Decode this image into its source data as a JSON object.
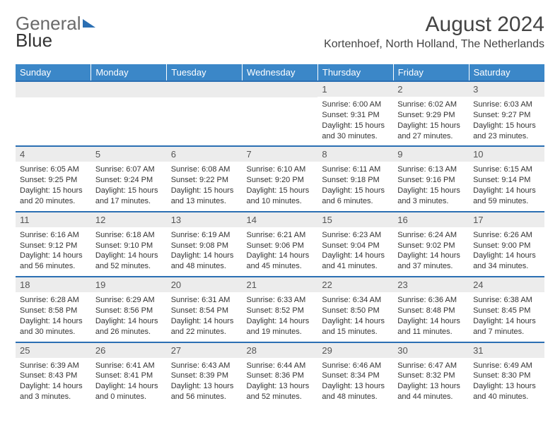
{
  "brand": {
    "part1": "General",
    "part2": "Blue"
  },
  "title": "August 2024",
  "location": "Kortenhoef, North Holland, The Netherlands",
  "colors": {
    "header_bg": "#3b87c8",
    "header_text": "#ffffff",
    "row_border": "#2b6fb3",
    "daynum_bg": "#ececec",
    "text": "#333333"
  },
  "typography": {
    "title_fontsize": 30,
    "location_fontsize": 16,
    "dayheader_fontsize": 13,
    "body_fontsize": 11
  },
  "day_headers": [
    "Sunday",
    "Monday",
    "Tuesday",
    "Wednesday",
    "Thursday",
    "Friday",
    "Saturday"
  ],
  "weeks": [
    [
      {
        "day": "",
        "sunrise": "",
        "sunset": "",
        "daylight": ""
      },
      {
        "day": "",
        "sunrise": "",
        "sunset": "",
        "daylight": ""
      },
      {
        "day": "",
        "sunrise": "",
        "sunset": "",
        "daylight": ""
      },
      {
        "day": "",
        "sunrise": "",
        "sunset": "",
        "daylight": ""
      },
      {
        "day": "1",
        "sunrise": "Sunrise: 6:00 AM",
        "sunset": "Sunset: 9:31 PM",
        "daylight": "Daylight: 15 hours and 30 minutes."
      },
      {
        "day": "2",
        "sunrise": "Sunrise: 6:02 AM",
        "sunset": "Sunset: 9:29 PM",
        "daylight": "Daylight: 15 hours and 27 minutes."
      },
      {
        "day": "3",
        "sunrise": "Sunrise: 6:03 AM",
        "sunset": "Sunset: 9:27 PM",
        "daylight": "Daylight: 15 hours and 23 minutes."
      }
    ],
    [
      {
        "day": "4",
        "sunrise": "Sunrise: 6:05 AM",
        "sunset": "Sunset: 9:25 PM",
        "daylight": "Daylight: 15 hours and 20 minutes."
      },
      {
        "day": "5",
        "sunrise": "Sunrise: 6:07 AM",
        "sunset": "Sunset: 9:24 PM",
        "daylight": "Daylight: 15 hours and 17 minutes."
      },
      {
        "day": "6",
        "sunrise": "Sunrise: 6:08 AM",
        "sunset": "Sunset: 9:22 PM",
        "daylight": "Daylight: 15 hours and 13 minutes."
      },
      {
        "day": "7",
        "sunrise": "Sunrise: 6:10 AM",
        "sunset": "Sunset: 9:20 PM",
        "daylight": "Daylight: 15 hours and 10 minutes."
      },
      {
        "day": "8",
        "sunrise": "Sunrise: 6:11 AM",
        "sunset": "Sunset: 9:18 PM",
        "daylight": "Daylight: 15 hours and 6 minutes."
      },
      {
        "day": "9",
        "sunrise": "Sunrise: 6:13 AM",
        "sunset": "Sunset: 9:16 PM",
        "daylight": "Daylight: 15 hours and 3 minutes."
      },
      {
        "day": "10",
        "sunrise": "Sunrise: 6:15 AM",
        "sunset": "Sunset: 9:14 PM",
        "daylight": "Daylight: 14 hours and 59 minutes."
      }
    ],
    [
      {
        "day": "11",
        "sunrise": "Sunrise: 6:16 AM",
        "sunset": "Sunset: 9:12 PM",
        "daylight": "Daylight: 14 hours and 56 minutes."
      },
      {
        "day": "12",
        "sunrise": "Sunrise: 6:18 AM",
        "sunset": "Sunset: 9:10 PM",
        "daylight": "Daylight: 14 hours and 52 minutes."
      },
      {
        "day": "13",
        "sunrise": "Sunrise: 6:19 AM",
        "sunset": "Sunset: 9:08 PM",
        "daylight": "Daylight: 14 hours and 48 minutes."
      },
      {
        "day": "14",
        "sunrise": "Sunrise: 6:21 AM",
        "sunset": "Sunset: 9:06 PM",
        "daylight": "Daylight: 14 hours and 45 minutes."
      },
      {
        "day": "15",
        "sunrise": "Sunrise: 6:23 AM",
        "sunset": "Sunset: 9:04 PM",
        "daylight": "Daylight: 14 hours and 41 minutes."
      },
      {
        "day": "16",
        "sunrise": "Sunrise: 6:24 AM",
        "sunset": "Sunset: 9:02 PM",
        "daylight": "Daylight: 14 hours and 37 minutes."
      },
      {
        "day": "17",
        "sunrise": "Sunrise: 6:26 AM",
        "sunset": "Sunset: 9:00 PM",
        "daylight": "Daylight: 14 hours and 34 minutes."
      }
    ],
    [
      {
        "day": "18",
        "sunrise": "Sunrise: 6:28 AM",
        "sunset": "Sunset: 8:58 PM",
        "daylight": "Daylight: 14 hours and 30 minutes."
      },
      {
        "day": "19",
        "sunrise": "Sunrise: 6:29 AM",
        "sunset": "Sunset: 8:56 PM",
        "daylight": "Daylight: 14 hours and 26 minutes."
      },
      {
        "day": "20",
        "sunrise": "Sunrise: 6:31 AM",
        "sunset": "Sunset: 8:54 PM",
        "daylight": "Daylight: 14 hours and 22 minutes."
      },
      {
        "day": "21",
        "sunrise": "Sunrise: 6:33 AM",
        "sunset": "Sunset: 8:52 PM",
        "daylight": "Daylight: 14 hours and 19 minutes."
      },
      {
        "day": "22",
        "sunrise": "Sunrise: 6:34 AM",
        "sunset": "Sunset: 8:50 PM",
        "daylight": "Daylight: 14 hours and 15 minutes."
      },
      {
        "day": "23",
        "sunrise": "Sunrise: 6:36 AM",
        "sunset": "Sunset: 8:48 PM",
        "daylight": "Daylight: 14 hours and 11 minutes."
      },
      {
        "day": "24",
        "sunrise": "Sunrise: 6:38 AM",
        "sunset": "Sunset: 8:45 PM",
        "daylight": "Daylight: 14 hours and 7 minutes."
      }
    ],
    [
      {
        "day": "25",
        "sunrise": "Sunrise: 6:39 AM",
        "sunset": "Sunset: 8:43 PM",
        "daylight": "Daylight: 14 hours and 3 minutes."
      },
      {
        "day": "26",
        "sunrise": "Sunrise: 6:41 AM",
        "sunset": "Sunset: 8:41 PM",
        "daylight": "Daylight: 14 hours and 0 minutes."
      },
      {
        "day": "27",
        "sunrise": "Sunrise: 6:43 AM",
        "sunset": "Sunset: 8:39 PM",
        "daylight": "Daylight: 13 hours and 56 minutes."
      },
      {
        "day": "28",
        "sunrise": "Sunrise: 6:44 AM",
        "sunset": "Sunset: 8:36 PM",
        "daylight": "Daylight: 13 hours and 52 minutes."
      },
      {
        "day": "29",
        "sunrise": "Sunrise: 6:46 AM",
        "sunset": "Sunset: 8:34 PM",
        "daylight": "Daylight: 13 hours and 48 minutes."
      },
      {
        "day": "30",
        "sunrise": "Sunrise: 6:47 AM",
        "sunset": "Sunset: 8:32 PM",
        "daylight": "Daylight: 13 hours and 44 minutes."
      },
      {
        "day": "31",
        "sunrise": "Sunrise: 6:49 AM",
        "sunset": "Sunset: 8:30 PM",
        "daylight": "Daylight: 13 hours and 40 minutes."
      }
    ]
  ]
}
